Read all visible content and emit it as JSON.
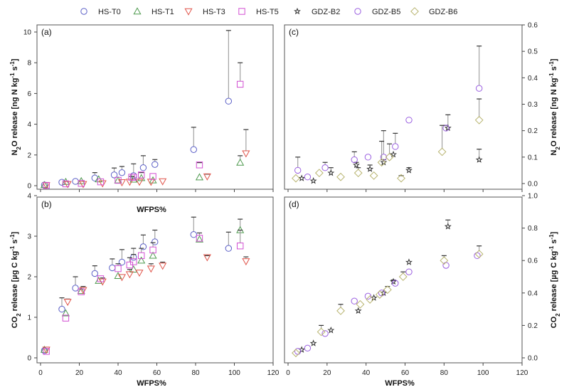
{
  "legend": [
    {
      "name": "HS-T0",
      "marker": "circle",
      "color": "#5b5fc7"
    },
    {
      "name": "HS-T1",
      "marker": "triangle-up",
      "color": "#4f9a4f"
    },
    {
      "name": "HS-T3",
      "marker": "triangle-down",
      "color": "#e0544a"
    },
    {
      "name": "HS-T5",
      "marker": "square",
      "color": "#d24fd2"
    },
    {
      "name": "GDZ-B2",
      "marker": "star",
      "color": "#333333"
    },
    {
      "name": "GDZ-B5",
      "marker": "circle",
      "color": "#9a5ee0"
    },
    {
      "name": "GDZ-B6",
      "marker": "diamond",
      "color": "#b8b470"
    }
  ],
  "chart_data": [
    {
      "panel": "(a)",
      "type": "scatter",
      "xlabel": "WFPS%",
      "ylabel": "N2O release [ng N kg-1 s-1]",
      "ylabel_parts": {
        "pre": "N",
        "sub": "2",
        "mid": "O release [ng N kg",
        "sup1": "-1",
        "mid2": " s",
        "sup2": "-1",
        "post": "]"
      },
      "xlim": [
        0,
        120
      ],
      "ylim": [
        0,
        10
      ],
      "xticks": [
        "0",
        "20",
        "40",
        "60",
        "80",
        "100",
        "120"
      ],
      "yticks": [
        "0",
        "2",
        "4",
        "6",
        "8",
        "10"
      ],
      "ytick_values": [
        0,
        2,
        4,
        6,
        8,
        10
      ],
      "yaxis_side": "left",
      "show_xtick_labels": false,
      "series": [
        {
          "name": "HS-T0",
          "points": [
            [
              2,
              0.05,
              0.05
            ],
            [
              11,
              0.22,
              0.1
            ],
            [
              18,
              0.28,
              0.05
            ],
            [
              28,
              0.5,
              0.85
            ],
            [
              38,
              0.7,
              1.15
            ],
            [
              42,
              0.85,
              1.25
            ],
            [
              48,
              0.65,
              1.42
            ],
            [
              53,
              1.17,
              1.95
            ],
            [
              59,
              1.38,
              1.7
            ],
            [
              79,
              2.35,
              3.8
            ],
            [
              97,
              5.5,
              10.1
            ]
          ]
        },
        {
          "name": "HS-T1",
          "points": [
            [
              2,
              0.05,
              0.05
            ],
            [
              13,
              0.25,
              0.25
            ],
            [
              21,
              0.3,
              0.3
            ],
            [
              30,
              0.42,
              0.42
            ],
            [
              40,
              0.35,
              0.35
            ],
            [
              48,
              0.4,
              0.4
            ],
            [
              52,
              0.5,
              0.5
            ],
            [
              58,
              0.35,
              0.35
            ],
            [
              82,
              0.55,
              0.55
            ],
            [
              103,
              1.5,
              1.95
            ]
          ]
        },
        {
          "name": "HS-T3",
          "points": [
            [
              3,
              0.02,
              0.02
            ],
            [
              14,
              0.1,
              0.1
            ],
            [
              22,
              0.1,
              0.1
            ],
            [
              32,
              0.15,
              0.15
            ],
            [
              42,
              0.22,
              0.22
            ],
            [
              46,
              0.25,
              0.25
            ],
            [
              51,
              0.25,
              0.25
            ],
            [
              57,
              0.25,
              0.25
            ],
            [
              63,
              0.28,
              0.28
            ],
            [
              86,
              0.6,
              0.75
            ],
            [
              106,
              2.1,
              3.65
            ]
          ]
        },
        {
          "name": "HS-T5",
          "points": [
            [
              3,
              0.02,
              0.02
            ],
            [
              13,
              0.12,
              0.12
            ],
            [
              21,
              0.15,
              0.15
            ],
            [
              31,
              0.25,
              0.25
            ],
            [
              40,
              0.35,
              0.35
            ],
            [
              47,
              0.55,
              0.6
            ],
            [
              48,
              0.55,
              0.55
            ],
            [
              52,
              0.7,
              0.85
            ],
            [
              58,
              0.6,
              0.6
            ],
            [
              82,
              1.35,
              1.5
            ],
            [
              103,
              6.6,
              8.0
            ]
          ]
        }
      ]
    },
    {
      "panel": "(b)",
      "type": "scatter",
      "xlabel": "WFPS%",
      "ylabel": "CO2 release [µg C kg-1 s-1]",
      "ylabel_parts": {
        "pre": "CO",
        "sub": "2",
        "mid": " release [µg C kg",
        "sup1": "-1",
        "mid2": " s",
        "sup2": "-1",
        "post": "]"
      },
      "xlim": [
        0,
        120
      ],
      "ylim": [
        0,
        4
      ],
      "xticks": [
        "0",
        "20",
        "40",
        "60",
        "80",
        "100",
        "120"
      ],
      "yticks": [
        "0",
        "1",
        "2",
        "3",
        "4"
      ],
      "ytick_values": [
        0,
        1,
        2,
        3,
        4
      ],
      "yaxis_side": "left",
      "show_xtick_labels": true,
      "series": [
        {
          "name": "HS-T0",
          "points": [
            [
              2,
              0.18,
              0.18
            ],
            [
              11,
              1.2,
              1.48
            ],
            [
              18,
              1.72,
              2.0
            ],
            [
              28,
              2.08,
              2.27
            ],
            [
              37,
              2.22,
              2.44
            ],
            [
              42,
              2.36,
              2.67
            ],
            [
              48,
              2.48,
              2.7
            ],
            [
              53,
              2.74,
              3.03
            ],
            [
              59,
              2.86,
              3.15
            ],
            [
              79,
              3.04,
              3.47
            ],
            [
              97,
              2.7,
              3.1
            ]
          ]
        },
        {
          "name": "HS-T1",
          "points": [
            [
              2,
              0.2,
              0.2
            ],
            [
              13,
              1.1,
              1.1
            ],
            [
              21,
              1.65,
              1.65
            ],
            [
              30,
              1.9,
              1.9
            ],
            [
              40,
              2.02,
              2.02
            ],
            [
              48,
              2.18,
              2.18
            ],
            [
              52,
              2.4,
              2.4
            ],
            [
              58,
              2.52,
              2.52
            ],
            [
              82,
              2.92,
              2.92
            ],
            [
              103,
              3.15,
              3.42
            ]
          ]
        },
        {
          "name": "HS-T3",
          "points": [
            [
              3,
              0.2,
              0.2
            ],
            [
              14,
              1.38,
              1.45
            ],
            [
              22,
              1.67,
              1.76
            ],
            [
              32,
              1.88,
              1.97
            ],
            [
              42,
              1.99,
              1.99
            ],
            [
              46,
              2.06,
              2.18
            ],
            [
              51,
              2.1,
              2.1
            ],
            [
              57,
              2.2,
              2.32
            ],
            [
              63,
              2.27,
              2.36
            ],
            [
              86,
              2.48,
              2.52
            ],
            [
              106,
              2.38,
              2.49
            ]
          ]
        },
        {
          "name": "HS-T5",
          "points": [
            [
              3,
              0.16,
              0.16
            ],
            [
              13,
              0.98,
              0.98
            ],
            [
              21,
              1.63,
              1.7
            ],
            [
              31,
              1.95,
              1.95
            ],
            [
              40,
              2.2,
              2.32
            ],
            [
              46,
              2.29,
              2.47
            ],
            [
              48,
              2.37,
              2.55
            ],
            [
              52,
              2.52,
              2.7
            ],
            [
              58,
              2.66,
              2.84
            ],
            [
              82,
              2.95,
              3.08
            ],
            [
              103,
              2.76,
              3.15
            ]
          ]
        }
      ]
    },
    {
      "panel": "(c)",
      "type": "scatter",
      "xlabel": "",
      "ylabel": "N2O release [ng N kg-1 s-1]",
      "ylabel_parts": {
        "pre": "N",
        "sub": "2",
        "mid": "O release [ng N kg",
        "sup1": "-1",
        "mid2": " s",
        "sup2": "-1",
        "post": "]"
      },
      "xlim": [
        0,
        120
      ],
      "ylim": [
        0,
        0.6
      ],
      "xticks": [
        "0",
        "20",
        "40",
        "60",
        "80",
        "100",
        "120"
      ],
      "yticks": [
        "0.0",
        "0.1",
        "0.2",
        "0.3",
        "0.4",
        "0.5",
        "0.6"
      ],
      "ytick_values": [
        0,
        0.1,
        0.2,
        0.3,
        0.4,
        0.5,
        0.6
      ],
      "yaxis_side": "right",
      "show_xtick_labels": false,
      "series": [
        {
          "name": "GDZ-B2",
          "points": [
            [
              7,
              0.02,
              0.02
            ],
            [
              13,
              0.01,
              0.01
            ],
            [
              22,
              0.04,
              0.06
            ],
            [
              35,
              0.07,
              0.08
            ],
            [
              42,
              0.055,
              0.07
            ],
            [
              49,
              0.08,
              0.09
            ],
            [
              54,
              0.11,
              0.11
            ],
            [
              62,
              0.05,
              0.06
            ],
            [
              82,
              0.21,
              0.26
            ],
            [
              98,
              0.09,
              0.13
            ]
          ]
        },
        {
          "name": "GDZ-B5",
          "points": [
            [
              5,
              0.05,
              0.1
            ],
            [
              10,
              0.025,
              0.025
            ],
            [
              19,
              0.06,
              0.08
            ],
            [
              34,
              0.09,
              0.12
            ],
            [
              41,
              0.1,
              0.1
            ],
            [
              49,
              0.1,
              0.2
            ],
            [
              55,
              0.14,
              0.19
            ],
            [
              62,
              0.24,
              0.24
            ],
            [
              81,
              0.21,
              0.22
            ],
            [
              98,
              0.36,
              0.52
            ]
          ]
        },
        {
          "name": "GDZ-B6",
          "points": [
            [
              4,
              0.02,
              0.02
            ],
            [
              16,
              0.04,
              0.04
            ],
            [
              27,
              0.025,
              0.025
            ],
            [
              36,
              0.04,
              0.06
            ],
            [
              44,
              0.03,
              0.03
            ],
            [
              48,
              0.08,
              0.16
            ],
            [
              52,
              0.1,
              0.15
            ],
            [
              58,
              0.02,
              0.03
            ],
            [
              79,
              0.12,
              0.22
            ],
            [
              98,
              0.24,
              0.32
            ]
          ]
        }
      ]
    },
    {
      "panel": "(d)",
      "type": "scatter",
      "xlabel": "WFPS%",
      "ylabel": "CO2 release [µg C kg-1 s-1]",
      "ylabel_parts": {
        "pre": "CO",
        "sub": "2",
        "mid": " release [µg C kg",
        "sup1": "-1",
        "mid2": " s",
        "sup2": "-1",
        "post": "]"
      },
      "xlim": [
        0,
        120
      ],
      "ylim": [
        0,
        1.0
      ],
      "xticks": [
        "0",
        "20",
        "40",
        "60",
        "80",
        "100",
        "120"
      ],
      "yticks": [
        "0.0",
        "0.2",
        "0.4",
        "0.6",
        "0.8",
        "1.0"
      ],
      "ytick_values": [
        0,
        0.2,
        0.4,
        0.6,
        0.8,
        1.0
      ],
      "yaxis_side": "right",
      "show_xtick_labels": true,
      "series": [
        {
          "name": "GDZ-B2",
          "points": [
            [
              7,
              0.05,
              0.05
            ],
            [
              13,
              0.09,
              0.09
            ],
            [
              22,
              0.17,
              0.17
            ],
            [
              36,
              0.29,
              0.29
            ],
            [
              44,
              0.37,
              0.37
            ],
            [
              49,
              0.4,
              0.4
            ],
            [
              54,
              0.47,
              0.48
            ],
            [
              62,
              0.59,
              0.59
            ],
            [
              82,
              0.81,
              0.85
            ]
          ]
        },
        {
          "name": "GDZ-B5",
          "points": [
            [
              5,
              0.04,
              0.04
            ],
            [
              10,
              0.06,
              0.06
            ],
            [
              19,
              0.15,
              0.15
            ],
            [
              34,
              0.35,
              0.35
            ],
            [
              41,
              0.38,
              0.38
            ],
            [
              48,
              0.4,
              0.4
            ],
            [
              55,
              0.46,
              0.46
            ],
            [
              62,
              0.53,
              0.53
            ],
            [
              81,
              0.57,
              0.57
            ],
            [
              97,
              0.63,
              0.63
            ]
          ]
        },
        {
          "name": "GDZ-B6",
          "points": [
            [
              4,
              0.03,
              0.03
            ],
            [
              17,
              0.16,
              0.2
            ],
            [
              27,
              0.29,
              0.33
            ],
            [
              37,
              0.33,
              0.33
            ],
            [
              42,
              0.36,
              0.36
            ],
            [
              47,
              0.39,
              0.39
            ],
            [
              51,
              0.42,
              0.44
            ],
            [
              59,
              0.5,
              0.53
            ],
            [
              80,
              0.6,
              0.63
            ],
            [
              98,
              0.64,
              0.69
            ]
          ]
        }
      ]
    }
  ]
}
